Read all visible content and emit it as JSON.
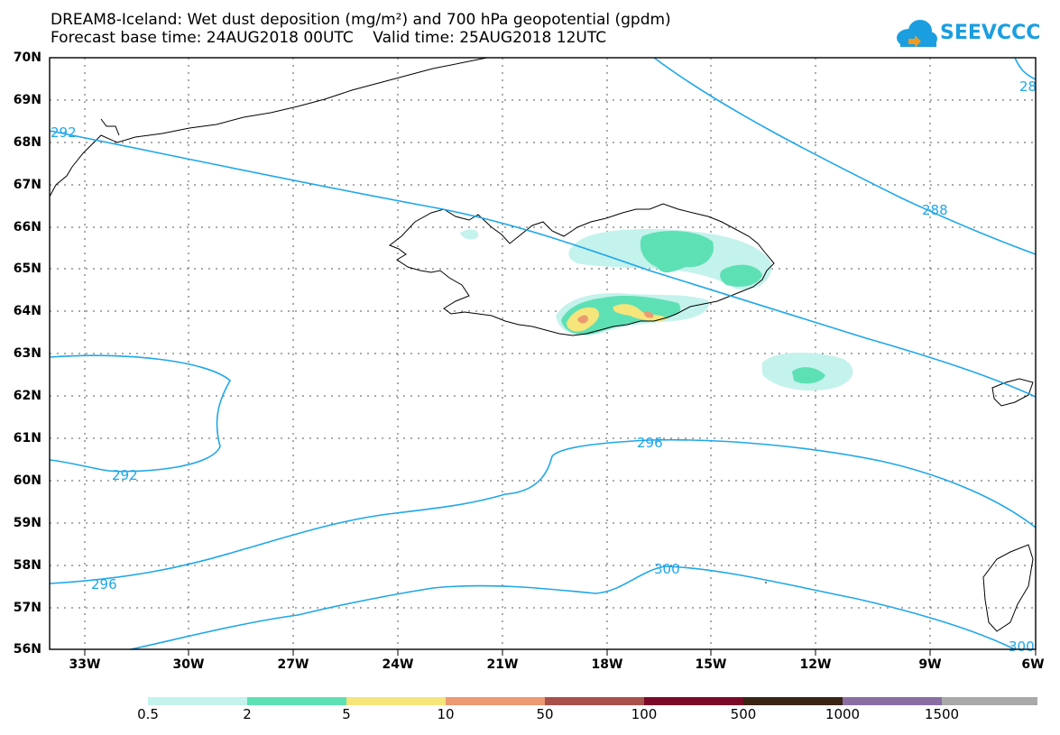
{
  "title_line1": "DREAM8-Iceland: Wet dust deposition (mg/m²) and 700 hPa geopotential (gpdm)",
  "title_line2": "Forecast base time: 24AUG2018 00UTC    Valid time: 25AUG2018 12UTC",
  "logo_text": "SEEVCCC",
  "lat_labels": [
    "70N",
    "69N",
    "68N",
    "67N",
    "66N",
    "65N",
    "64N",
    "63N",
    "62N",
    "61N",
    "60N",
    "59N",
    "58N",
    "57N",
    "56N"
  ],
  "lon_labels": [
    "33W",
    "30W",
    "27W",
    "24W",
    "21W",
    "18W",
    "15W",
    "12W",
    "9W",
    "6W"
  ],
  "contour_labels": [
    "292",
    "288",
    "28",
    "292",
    "296",
    "296",
    "300",
    "300"
  ],
  "colorbar": {
    "labels": [
      "0.5",
      "2",
      "5",
      "10",
      "50",
      "100",
      "500",
      "1000",
      "1500"
    ],
    "colors": [
      "#c4f2ec",
      "#5ee0b5",
      "#f5e57a",
      "#eb9a72",
      "#a8524b",
      "#7a0a27",
      "#3a2414",
      "#8a6ea3",
      "#a9a9a9"
    ]
  },
  "colors": {
    "contour": "#1ea7ea",
    "coast": "#000000",
    "grid": "#555555"
  }
}
